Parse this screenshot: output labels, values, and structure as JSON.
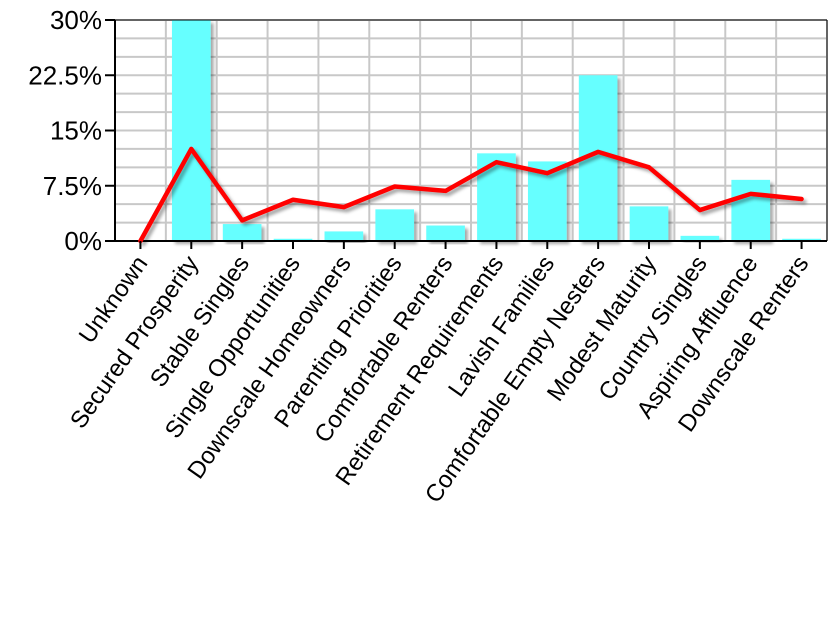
{
  "chart_data": {
    "type": "bar",
    "title": "",
    "xlabel": "",
    "ylabel": "",
    "ylim": [
      0,
      30
    ],
    "yticks": [
      {
        "value": 0,
        "label": "0%"
      },
      {
        "value": 7.5,
        "label": "7.5%"
      },
      {
        "value": 15,
        "label": "15%"
      },
      {
        "value": 22.5,
        "label": "22.5%"
      },
      {
        "value": 30,
        "label": "30%"
      }
    ],
    "grid": true,
    "legend": "none",
    "categories": [
      "Unknown",
      "Secured Prosperity",
      "Stable Singles",
      "Single Opportunities",
      "Downscale Homeowners",
      "Parenting Priorities",
      "Comfortable Renters",
      "Retirement Requirements",
      "Lavish Families",
      "Comfortable Empty Nesters",
      "Modest Maturity",
      "Country Singles",
      "Aspiring Affluence",
      "Downscale Renters"
    ],
    "series": [
      {
        "type": "bar",
        "color": "#66ffff",
        "values": [
          0,
          30,
          2.3,
          0.3,
          1.3,
          4.3,
          2.1,
          11.9,
          10.8,
          22.5,
          4.7,
          0.7,
          8.3,
          0.3
        ]
      },
      {
        "type": "line",
        "color": "#ff0000",
        "values": [
          0,
          12.5,
          2.8,
          5.6,
          4.6,
          7.4,
          6.8,
          10.7,
          9.2,
          12.1,
          10.0,
          4.2,
          6.4,
          5.7
        ]
      }
    ]
  }
}
